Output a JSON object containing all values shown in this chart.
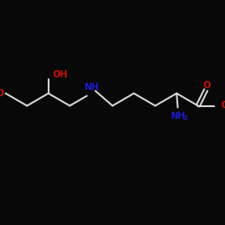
{
  "background_color": "#080808",
  "bond_color": "#d8d8d8",
  "O_color": "#cc1100",
  "N_color": "#1a1acc",
  "figsize": [
    2.5,
    2.5
  ],
  "dpi": 100,
  "xlim": [
    0,
    10
  ],
  "ylim": [
    0,
    10
  ],
  "bond_lw": 1.4,
  "font_size": 7.2,
  "font_size_sub": 6.2
}
